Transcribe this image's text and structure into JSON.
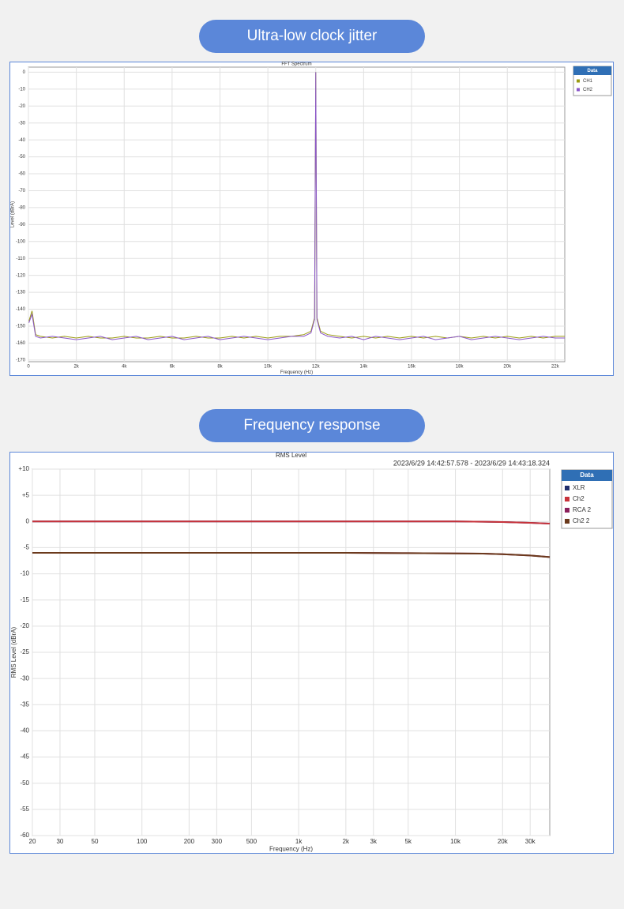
{
  "chart_data": [
    {
      "type": "line",
      "header": "Ultra-low clock jitter",
      "title": "FFT Spectrum",
      "xlabel": "Frequency (Hz)",
      "ylabel": "Level (dBrA)",
      "legend_title": "Data",
      "legend": "right",
      "grid": true,
      "xscale": "linear",
      "xlim": [
        0,
        22400
      ],
      "ylim": [
        -171,
        3
      ],
      "xticks": [
        0,
        {
          "value": 2000,
          "label": "2k"
        },
        {
          "value": 4000,
          "label": "4k"
        },
        {
          "value": 6000,
          "label": "6k"
        },
        {
          "value": 8000,
          "label": "8k"
        },
        {
          "value": 10000,
          "label": "10k"
        },
        {
          "value": 12000,
          "label": "12k"
        },
        {
          "value": 14000,
          "label": "14k"
        },
        {
          "value": 16000,
          "label": "16k"
        },
        {
          "value": 18000,
          "label": "18k"
        },
        {
          "value": 20000,
          "label": "20k"
        },
        {
          "value": 22000,
          "label": "22k"
        }
      ],
      "yticks": [
        0,
        -10,
        -20,
        -30,
        -40,
        -50,
        -60,
        -70,
        -80,
        -90,
        -100,
        -110,
        -120,
        -130,
        -140,
        -150,
        -160,
        -170
      ],
      "x": [
        20,
        150,
        300,
        500,
        1000,
        1500,
        2000,
        2500,
        3000,
        3500,
        4000,
        4500,
        5000,
        5500,
        6000,
        6500,
        7000,
        7500,
        8000,
        8500,
        9000,
        9500,
        10000,
        10500,
        11000,
        11500,
        11800,
        11950,
        12000,
        12050,
        12200,
        12500,
        13000,
        13500,
        14000,
        14500,
        15000,
        15500,
        16000,
        16500,
        17000,
        17500,
        18000,
        18500,
        19000,
        19500,
        20000,
        20500,
        21000,
        21500,
        22000,
        22400
      ],
      "series": [
        {
          "name": "CH1",
          "color": "#9a9a10",
          "values": [
            -147,
            -141,
            -155,
            -156,
            -157,
            -156,
            -157,
            -156,
            -157,
            -157,
            -156,
            -157,
            -157,
            -156,
            -157,
            -157,
            -156,
            -157,
            -157,
            -156,
            -157,
            -156,
            -157,
            -156,
            -156,
            -155,
            -153,
            -145,
            0,
            -145,
            -153,
            -155,
            -156,
            -157,
            -156,
            -157,
            -156,
            -157,
            -156,
            -157,
            -156,
            -157,
            -156,
            -157,
            -156,
            -157,
            -156,
            -157,
            -156,
            -157,
            -156,
            -156
          ]
        },
        {
          "name": "CH2",
          "color": "#8a55c8",
          "values": [
            -148,
            -143,
            -156,
            -157,
            -156,
            -157,
            -158,
            -157,
            -156,
            -158,
            -157,
            -156,
            -158,
            -157,
            -156,
            -158,
            -157,
            -156,
            -158,
            -157,
            -156,
            -157,
            -158,
            -157,
            -156,
            -156,
            -154,
            -146,
            0,
            -146,
            -154,
            -156,
            -157,
            -156,
            -158,
            -156,
            -157,
            -158,
            -157,
            -156,
            -158,
            -157,
            -156,
            -158,
            -157,
            -156,
            -157,
            -158,
            -157,
            -156,
            -157,
            -157
          ]
        }
      ]
    },
    {
      "type": "line",
      "header": "Frequency response",
      "title": "RMS Level",
      "annotation": "2023/6/29 14:42:57.578 -  2023/6/29 14:43:18.324",
      "xlabel": "Frequency (Hz)",
      "ylabel": "RMS Level (dBrA)",
      "legend_title": "Data",
      "legend": "right",
      "grid": true,
      "xscale": "log",
      "xlim": [
        20,
        40000
      ],
      "ylim": [
        -60,
        10
      ],
      "xticks": [
        20,
        30,
        50,
        100,
        200,
        300,
        500,
        {
          "value": 1000,
          "label": "1k"
        },
        {
          "value": 2000,
          "label": "2k"
        },
        {
          "value": 3000,
          "label": "3k"
        },
        {
          "value": 5000,
          "label": "5k"
        },
        {
          "value": 10000,
          "label": "10k"
        },
        {
          "value": 20000,
          "label": "20k"
        },
        {
          "value": 30000,
          "label": "30k"
        }
      ],
      "yticks": [
        {
          "value": 10,
          "label": "+10"
        },
        {
          "value": 5,
          "label": "+5"
        },
        0,
        -5,
        -10,
        -15,
        -20,
        -25,
        -30,
        -35,
        -40,
        -45,
        -50,
        -55,
        -60
      ],
      "x": [
        20,
        50,
        100,
        200,
        500,
        1000,
        2000,
        5000,
        10000,
        15000,
        20000,
        30000,
        40000
      ],
      "series": [
        {
          "name": "XLR",
          "color": "#1f2d6b",
          "values": [
            0,
            0,
            0,
            0,
            0,
            0,
            0,
            0,
            0,
            -0.05,
            -0.1,
            -0.25,
            -0.4
          ]
        },
        {
          "name": "Ch2",
          "color": "#c8323a",
          "values": [
            0,
            0,
            0,
            0,
            0,
            0,
            0,
            0,
            0,
            -0.05,
            -0.1,
            -0.25,
            -0.4
          ]
        },
        {
          "name": "RCA 2",
          "color": "#8a1f5a",
          "values": [
            -6,
            -6,
            -6,
            -6,
            -6,
            -6,
            -6,
            -6.05,
            -6.1,
            -6.15,
            -6.25,
            -6.5,
            -6.8
          ]
        },
        {
          "name": "Ch2 2",
          "color": "#6b3a1c",
          "values": [
            -6,
            -6,
            -6,
            -6,
            -6,
            -6,
            -6,
            -6.05,
            -6.1,
            -6.15,
            -6.25,
            -6.5,
            -6.8
          ]
        }
      ]
    }
  ]
}
